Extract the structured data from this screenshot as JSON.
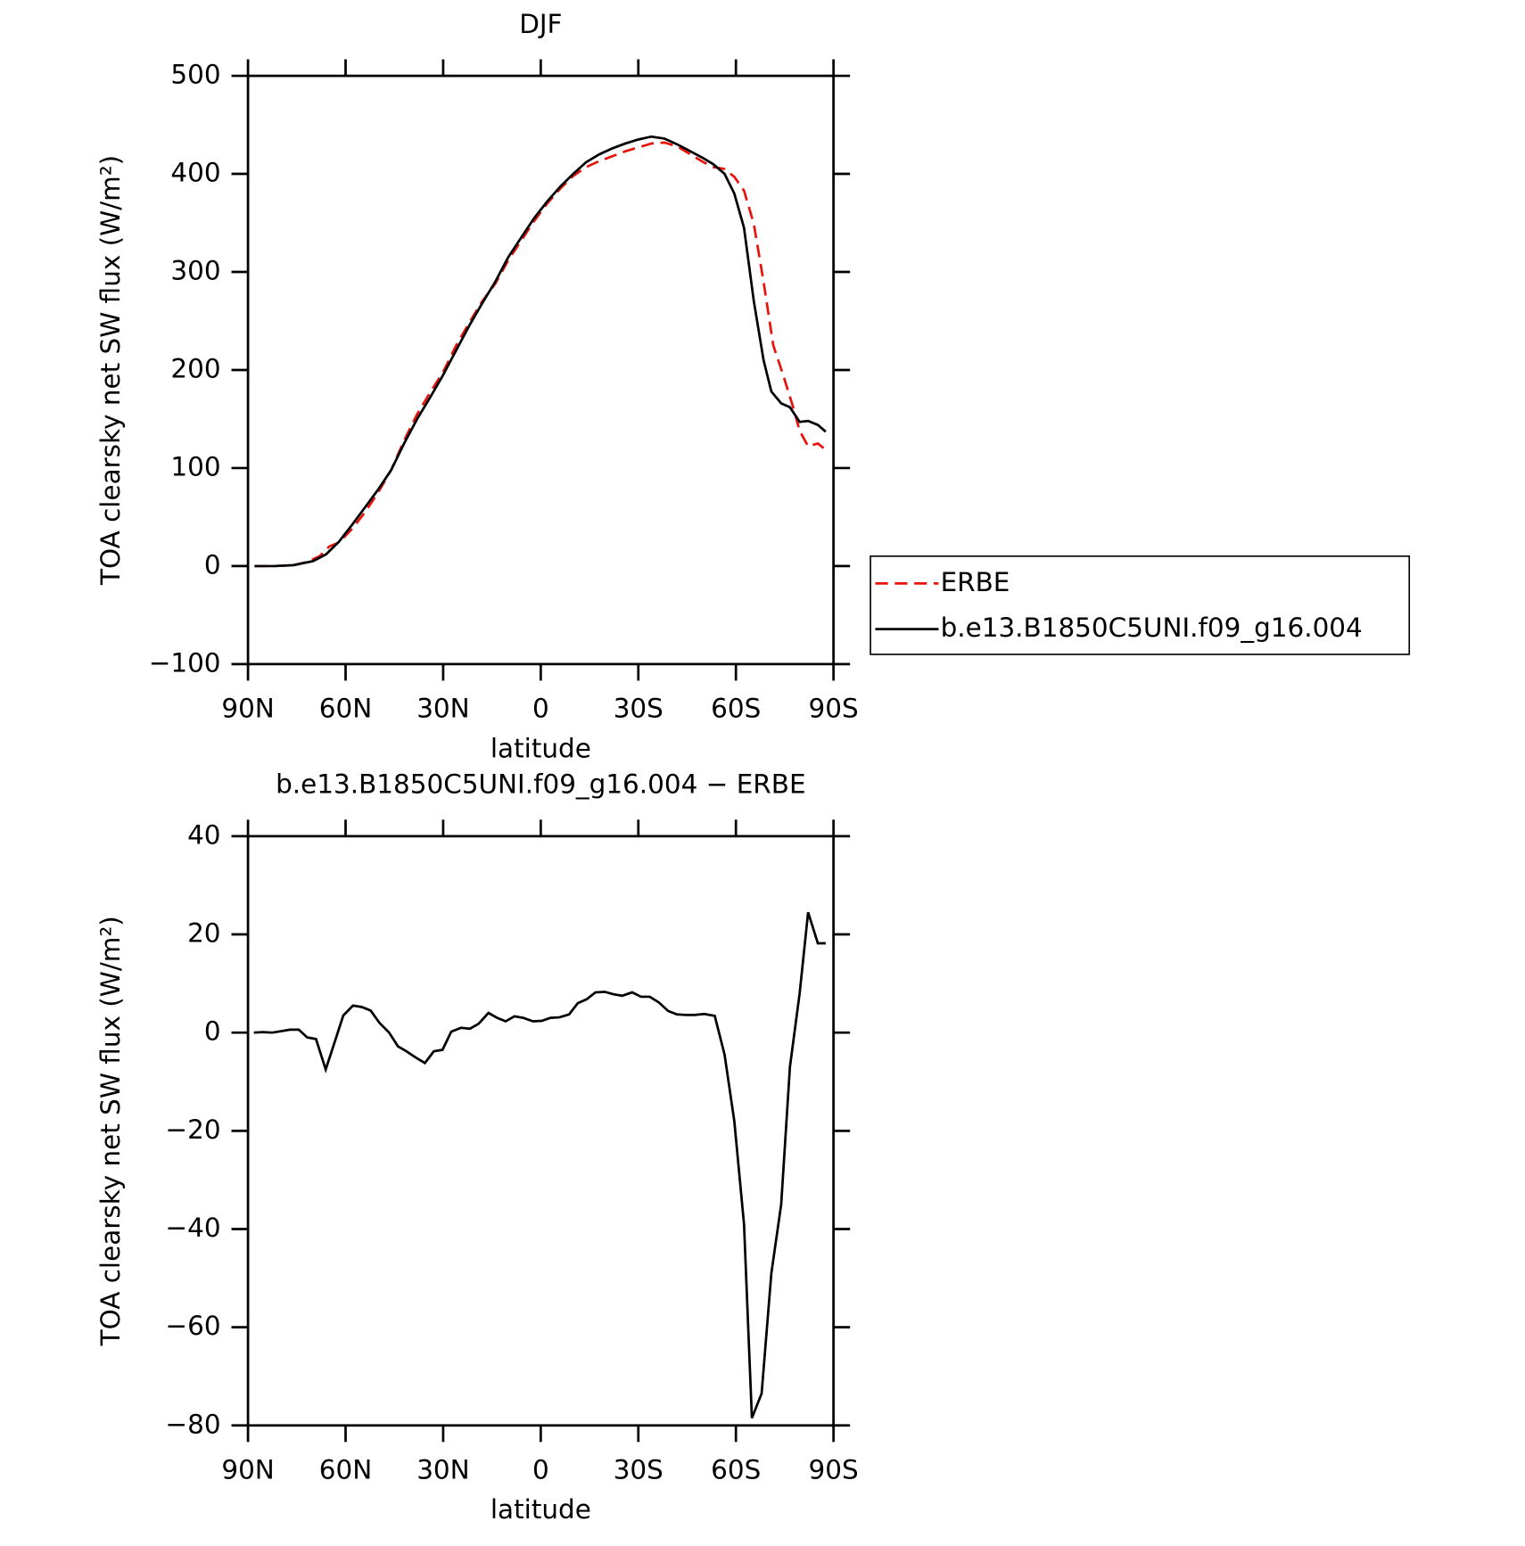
{
  "chart_data": [
    {
      "type": "line",
      "title": "DJF",
      "xlabel": "latitude",
      "ylabel": "TOA clearsky net SW flux (W/m²)",
      "xlim": [
        90,
        -90
      ],
      "ylim": [
        -100,
        500
      ],
      "xticks": [
        {
          "value": 90,
          "label": "90N"
        },
        {
          "value": 60,
          "label": "60N"
        },
        {
          "value": 30,
          "label": "30N"
        },
        0,
        {
          "value": -30,
          "label": "30S"
        },
        {
          "value": -60,
          "label": "60S"
        },
        {
          "value": -90,
          "label": "90S"
        }
      ],
      "yticks": [
        {
          "value": -100,
          "label": "−100"
        },
        0,
        100,
        200,
        300,
        400,
        500
      ],
      "legend": "right",
      "series": [
        {
          "name": "ERBE",
          "color": "#e8140c",
          "linestyle": "dashed",
          "x": [
            88,
            82,
            76,
            72,
            68,
            65,
            62,
            58,
            54,
            50,
            46,
            42,
            38,
            34,
            30,
            26,
            22,
            18,
            14,
            10,
            6,
            2,
            -2,
            -6,
            -10,
            -14,
            -18,
            -22,
            -26,
            -30,
            -34,
            -38,
            -42,
            -46,
            -50,
            -53,
            -56.5,
            -59.5,
            -62.5,
            -65.5,
            -68.5,
            -71.5,
            -74.5,
            -77.5,
            -79.6,
            -82.2,
            -85.2,
            -88.2
          ],
          "values": [
            0,
            0,
            1,
            4,
            10,
            20,
            24,
            38,
            55,
            75,
            98,
            128,
            155,
            177,
            198,
            225,
            248,
            270,
            288,
            312,
            332,
            352,
            370,
            385,
            398,
            407,
            413,
            418,
            423,
            427,
            431,
            432,
            428,
            420,
            412,
            407,
            405,
            397,
            383,
            349,
            290,
            225,
            195,
            163,
            138,
            122,
            125,
            117
          ]
        },
        {
          "name": "b.e13.B1850C5UNI.f09_g16.004",
          "color": "#000000",
          "linestyle": "solid",
          "x": [
            88,
            82,
            76,
            70,
            66,
            62,
            58,
            54,
            50,
            46,
            42,
            38,
            34,
            30,
            26,
            22,
            18,
            14,
            10,
            6,
            2,
            -2,
            -6,
            -10,
            -14,
            -18,
            -22,
            -26,
            -30,
            -34,
            -38,
            -42,
            -46,
            -50,
            -53,
            -56.5,
            -59.5,
            -62.5,
            -65.5,
            -68.5,
            -70.9,
            -73.9,
            -76.6,
            -79.6,
            -82.2,
            -85.2,
            -87.6
          ],
          "values": [
            0,
            0,
            1,
            5,
            12,
            25,
            42,
            60,
            78,
            98,
            125,
            150,
            172,
            195,
            220,
            245,
            268,
            290,
            315,
            335,
            355,
            372,
            387,
            400,
            412,
            420,
            426,
            431,
            435,
            438,
            436,
            430,
            423,
            416,
            410,
            400,
            380,
            345,
            270,
            210,
            178,
            166,
            162,
            147,
            148,
            144,
            137
          ]
        }
      ]
    },
    {
      "type": "line",
      "title": "b.e13.B1850C5UNI.f09_g16.004 − ERBE",
      "xlabel": "latitude",
      "ylabel": "TOA clearsky net SW flux (W/m²)",
      "xlim": [
        90,
        -90
      ],
      "ylim": [
        -80,
        40
      ],
      "xticks": [
        {
          "value": 90,
          "label": "90N"
        },
        {
          "value": 60,
          "label": "60N"
        },
        {
          "value": 30,
          "label": "30N"
        },
        0,
        {
          "value": -30,
          "label": "30S"
        },
        {
          "value": -60,
          "label": "60S"
        },
        {
          "value": -90,
          "label": "90S"
        }
      ],
      "yticks": [
        {
          "value": -80,
          "label": "−80"
        },
        {
          "value": -60,
          "label": "−60"
        },
        {
          "value": -40,
          "label": "−40"
        },
        {
          "value": -20,
          "label": "−20"
        },
        0,
        20,
        40
      ],
      "color": "#000000",
      "x": [
        88.2,
        85.5,
        82.5,
        79.8,
        77.1,
        74.4,
        71.8,
        69.1,
        66.1,
        63.4,
        60.7,
        57.7,
        55.0,
        52.3,
        49.6,
        46.6,
        43.9,
        41.3,
        38.6,
        35.6,
        32.9,
        30.2,
        27.5,
        24.5,
        21.8,
        19.1,
        16.1,
        13.4,
        10.8,
        8.1,
        5.4,
        2.4,
        -0.3,
        -3.0,
        -5.7,
        -8.7,
        -11.4,
        -14.1,
        -16.8,
        -19.7,
        -22.4,
        -25.1,
        -28.1,
        -30.8,
        -33.5,
        -36.2,
        -39.2,
        -41.9,
        -44.6,
        -47.3,
        -50.3,
        -53.5,
        -56.5,
        -59.5,
        -62.5,
        -64.9,
        -67.9,
        -70.9,
        -73.9,
        -76.6,
        -79.6,
        -82.2,
        -85.2,
        -87.6
      ],
      "values": [
        0,
        0.1,
        0,
        0.3,
        0.6,
        0.6,
        -1,
        -1.3,
        -7.5,
        -2,
        3.5,
        5.5,
        5.2,
        4.5,
        2,
        0,
        -2.8,
        -3.8,
        -5,
        -6.2,
        -3.8,
        -3.5,
        0.2,
        1,
        0.8,
        1.8,
        4,
        3,
        2.3,
        3.3,
        3,
        2.3,
        2.4,
        3,
        3.1,
        3.7,
        6,
        6.8,
        8.2,
        8.3,
        7.8,
        7.5,
        8.2,
        7.3,
        7.3,
        6.2,
        4.4,
        3.7,
        3.6,
        3.6,
        3.8,
        3.4,
        -4.5,
        -18,
        -39,
        -78.5,
        -73.5,
        -49,
        -35,
        -7,
        8,
        24.5,
        18.2,
        18.2
      ]
    }
  ]
}
